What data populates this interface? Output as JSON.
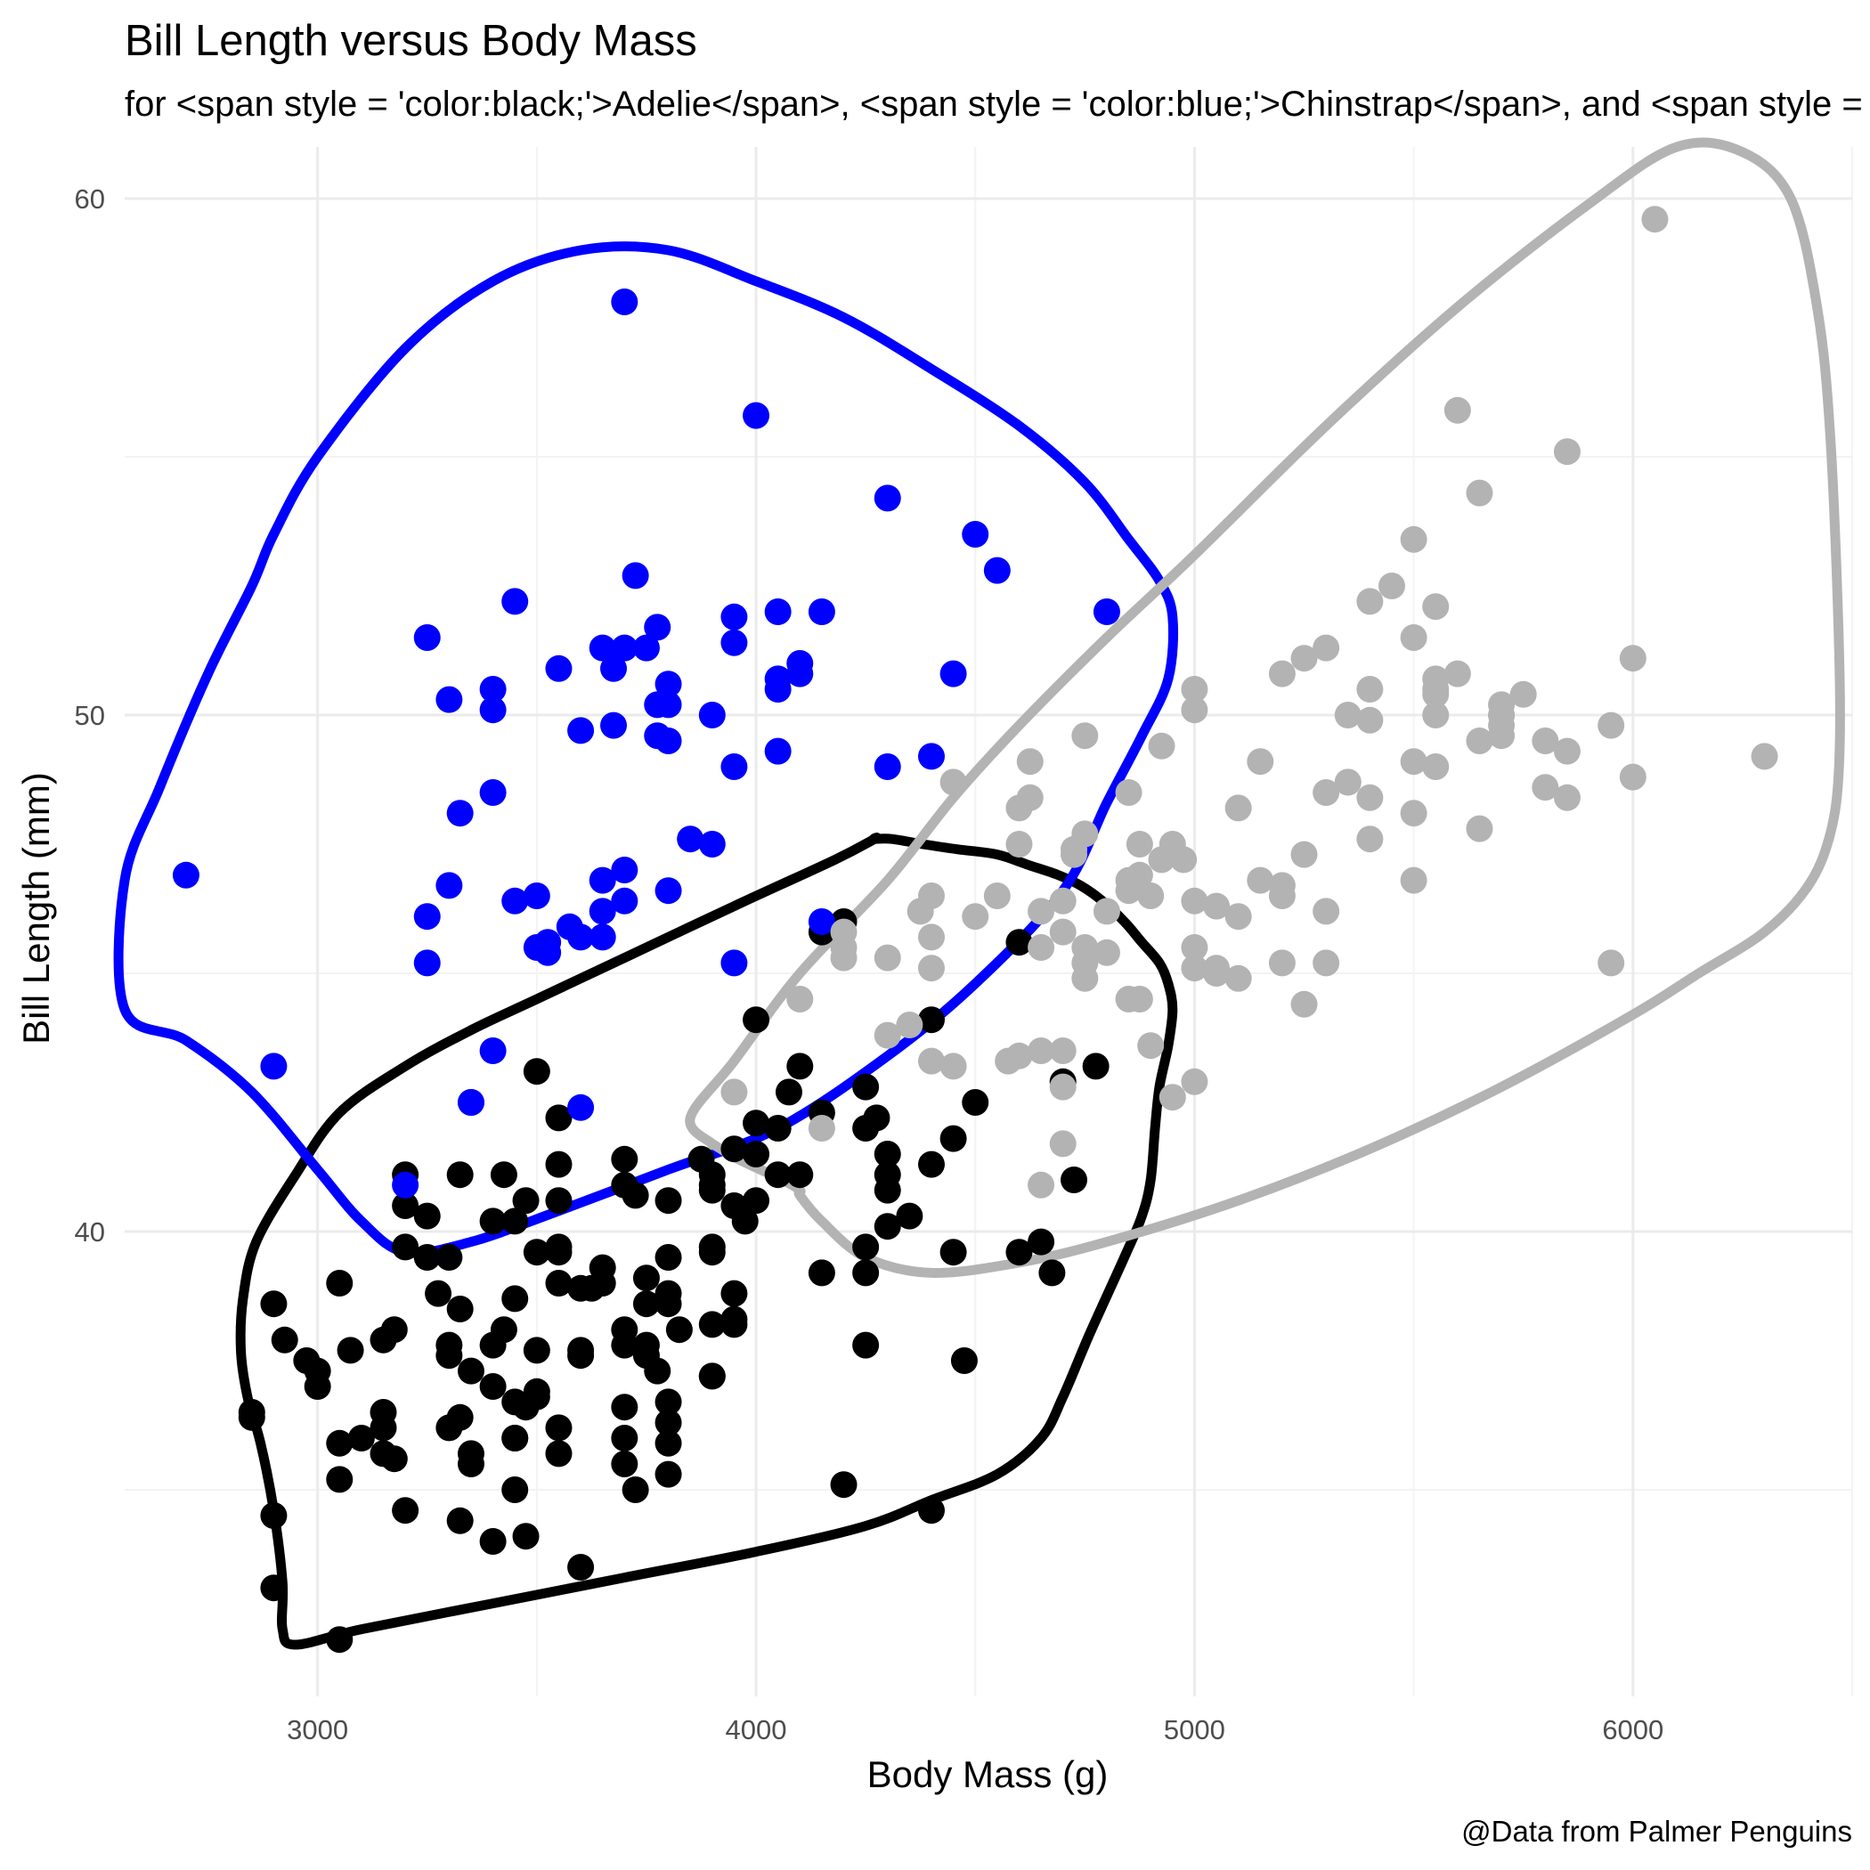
{
  "chart_data": {
    "type": "scatter",
    "title": "Bill Length versus Body Mass",
    "subtitle": "for <span style = 'color:black;'>Adelie</span>, <span style = 'color:blue;'>Chinstrap</span>, and <span style = 'color:gray;'>Gentoo</span>",
    "xlabel": "Body Mass (g)",
    "ylabel": "Bill Length (mm)",
    "caption": "@Data from Palmer Penguins",
    "xlim": [
      2560,
      6500
    ],
    "ylim": [
      31.0,
      61.0
    ],
    "xticks": [
      3000,
      4000,
      5000,
      6000
    ],
    "yticks": [
      40,
      50,
      60
    ],
    "grid": true,
    "legend": "none",
    "colors": {
      "Adelie": "#000000",
      "Chinstrap": "#0000ff",
      "Gentoo": "#b3b3b3"
    },
    "series": [
      {
        "color": "#000000",
        "x": [
          3750,
          3800,
          3250,
          3450,
          3650,
          3625,
          4675,
          3475,
          4250,
          3300,
          3700,
          3200,
          3800,
          4400,
          3700,
          3450,
          4500,
          3325,
          4200,
          3400,
          3600,
          3800,
          3950,
          3800,
          3800,
          3550,
          3200,
          3150,
          3950,
          3250,
          3900,
          3300,
          3900,
          3325,
          4150,
          3950,
          3550,
          3300,
          4650,
          3150,
          3900,
          3100,
          4400,
          3000,
          4600,
          3425,
          2975,
          3450,
          4150,
          3500,
          4300,
          3450,
          4050,
          2900,
          3700,
          3550,
          3800,
          2850,
          3750,
          3150,
          4400,
          3600,
          4050,
          2850,
          3950,
          3350,
          4100,
          3050,
          4450,
          3600,
          3900,
          3550,
          4150,
          3700,
          4250,
          3700,
          3900,
          3550,
          4000,
          3200,
          4700,
          3800,
          4200,
          3350,
          3550,
          3800,
          3500,
          3950,
          3600,
          3550,
          4300,
          3400,
          4450,
          3300,
          4300,
          3700,
          4350,
          2900,
          4100,
          3725,
          4725,
          3075,
          4250,
          2925,
          3550,
          3750,
          3900,
          3175,
          4775,
          3825,
          4600,
          3200,
          4275,
          3900,
          4075,
          2900,
          3775,
          3350,
          3325,
          3150,
          3500,
          3450,
          3875,
          3050,
          4000,
          3275,
          4300,
          3050,
          4000,
          3325,
          3500,
          3500,
          4475,
          3425,
          3900,
          3175,
          3975,
          3400,
          4250,
          3400,
          3475,
          3050,
          3725,
          3000,
          3650,
          4250,
          3475,
          3450,
          3750,
          3700,
          4000
        ],
        "y": [
          39.1,
          39.5,
          40.3,
          36.7,
          39.3,
          38.9,
          39.2,
          34.1,
          42.0,
          37.8,
          37.8,
          41.1,
          38.6,
          34.6,
          36.6,
          38.7,
          42.5,
          34.4,
          46.0,
          37.8,
          37.7,
          35.9,
          38.2,
          38.8,
          35.3,
          40.6,
          40.5,
          37.9,
          40.5,
          39.5,
          37.2,
          39.5,
          40.9,
          36.4,
          39.2,
          38.8,
          42.2,
          37.6,
          39.8,
          36.5,
          40.8,
          36.0,
          44.1,
          37.0,
          39.6,
          41.1,
          37.5,
          36.0,
          42.3,
          39.6,
          40.1,
          35.0,
          42.0,
          34.5,
          41.4,
          39.0,
          40.6,
          36.5,
          37.6,
          35.7,
          41.3,
          37.6,
          41.1,
          36.4,
          41.6,
          35.5,
          41.1,
          35.9,
          41.8,
          33.5,
          39.7,
          39.6,
          45.8,
          35.5,
          42.8,
          40.9,
          37.2,
          36.2,
          42.1,
          34.6,
          42.9,
          36.7,
          35.1,
          37.3,
          41.3,
          36.3,
          36.9,
          38.3,
          38.9,
          35.7,
          41.1,
          34.0,
          39.6,
          36.2,
          40.8,
          38.1,
          40.3,
          33.1,
          43.2,
          35.0,
          41.0,
          37.7,
          37.8,
          37.9,
          39.7,
          38.6,
          38.2,
          38.1,
          43.2,
          38.1,
          45.6,
          39.7,
          42.2,
          39.6,
          42.7,
          38.6,
          37.3,
          35.7,
          41.1,
          36.2,
          37.7,
          40.2,
          41.4,
          35.2,
          40.6,
          38.8,
          41.5,
          39.0,
          44.1,
          38.5,
          43.1,
          36.8,
          37.5,
          38.1,
          41.1,
          35.6,
          40.2,
          37.0,
          39.7,
          40.2,
          40.6,
          32.1,
          40.7,
          37.3,
          39.0,
          39.2,
          36.6,
          36.0,
          37.8,
          36.0,
          41.5
        ]
      },
      {
        "color": "#0000ff",
        "x": [
          3500,
          3900,
          3650,
          3525,
          3725,
          3950,
          3250,
          3750,
          4150,
          3700,
          3800,
          3775,
          3700,
          4050,
          3575,
          4050,
          3300,
          3700,
          3450,
          4400,
          3600,
          3400,
          2900,
          3800,
          3300,
          4150,
          3400,
          3800,
          3700,
          4550,
          3200,
          4300,
          3350,
          4100,
          3600,
          3900,
          3850,
          4800,
          2700,
          4500,
          3950,
          3650,
          3550,
          3500,
          3675,
          4450,
          3400,
          4300,
          3250,
          3675,
          3325,
          3950,
          3600,
          4050,
          3350,
          3450,
          3250,
          4050,
          3800,
          3525,
          3950,
          3650,
          3650,
          4000,
          3400,
          3775,
          4100,
          3775
        ],
        "y": [
          46.5,
          50.0,
          51.3,
          45.4,
          52.7,
          45.2,
          46.1,
          51.3,
          46.0,
          51.3,
          46.6,
          51.7,
          47.0,
          52.0,
          45.9,
          50.5,
          50.3,
          58.0,
          46.4,
          49.2,
          42.4,
          48.5,
          43.2,
          50.6,
          46.7,
          52.0,
          50.5,
          49.5,
          46.4,
          52.8,
          40.9,
          54.2,
          42.5,
          51.0,
          49.7,
          47.5,
          47.6,
          52.0,
          46.9,
          53.5,
          49.0,
          46.2,
          50.9,
          45.5,
          50.9,
          50.8,
          50.1,
          49.0,
          51.5,
          49.8,
          48.1,
          51.4,
          45.7,
          50.7,
          42.5,
          52.2,
          45.2,
          49.3,
          50.2,
          45.6,
          51.9,
          46.8,
          45.7,
          55.8,
          43.5,
          49.6,
          50.8,
          50.2
        ]
      },
      {
        "color": "#b3b3b3",
        "x": [
          4500,
          5700,
          4450,
          5700,
          5400,
          4550,
          4800,
          5200,
          4400,
          5150,
          4650,
          5550,
          4650,
          5850,
          4200,
          5850,
          4150,
          6300,
          4800,
          5350,
          5700,
          5000,
          4400,
          5050,
          5000,
          5100,
          4100,
          5650,
          4600,
          5550,
          5250,
          4700,
          5050,
          6050,
          5150,
          5400,
          4950,
          5250,
          4350,
          5350,
          3950,
          5700,
          4300,
          4750,
          5550,
          4900,
          4200,
          5400,
          5100,
          5300,
          4850,
          5300,
          4400,
          5000,
          4900,
          5050,
          4300,
          5000,
          4450,
          5550,
          4200,
          5300,
          4400,
          5650,
          4700,
          5700,
          4650,
          5800,
          4700,
          5550,
          4750,
          5000,
          5100,
          5200,
          4700,
          5800,
          4600,
          6000,
          4750,
          5950,
          4625,
          5450,
          4725,
          5350,
          4750,
          5600,
          4600,
          5300,
          4875,
          5550,
          4950,
          5400,
          4750,
          5650,
          4850,
          5200,
          4925,
          4875,
          4625,
          5250,
          4850,
          5600,
          4975,
          5500,
          4725,
          5500,
          4700,
          5500,
          4575,
          5500,
          5000,
          5950,
          4650,
          5500,
          4375,
          5850,
          4875,
          6000,
          4925,
          4850,
          5750,
          5200,
          5400
        ],
        "y": [
          46.1,
          50.0,
          48.7,
          50.0,
          47.6,
          46.5,
          45.4,
          46.7,
          43.3,
          46.8,
          40.9,
          49.0,
          45.5,
          48.4,
          45.8,
          49.3,
          42.0,
          49.2,
          46.2,
          48.7,
          50.2,
          45.1,
          46.5,
          46.3,
          42.9,
          46.1,
          44.5,
          47.8,
          48.2,
          50.0,
          47.3,
          42.8,
          45.1,
          59.6,
          49.1,
          48.4,
          42.6,
          44.4,
          44.0,
          48.7,
          42.7,
          49.6,
          45.3,
          49.6,
          50.5,
          43.6,
          45.5,
          50.5,
          44.9,
          45.2,
          46.6,
          48.5,
          45.1,
          50.1,
          46.5,
          45.0,
          43.8,
          45.5,
          43.2,
          50.4,
          45.3,
          46.2,
          45.7,
          54.3,
          45.8,
          49.8,
          46.2,
          49.5,
          43.5,
          50.7,
          47.7,
          46.4,
          48.2,
          46.5,
          46.4,
          48.6,
          47.5,
          51.1,
          45.2,
          45.2,
          49.1,
          52.5,
          47.4,
          50.0,
          44.9,
          50.8,
          43.4,
          51.3,
          47.5,
          52.1,
          47.5,
          52.2,
          45.5,
          49.5,
          44.5,
          50.8,
          49.4,
          46.9,
          48.4,
          51.1,
          48.5,
          55.9,
          47.2,
          49.1,
          47.3,
          46.8,
          41.7,
          53.4,
          43.3,
          48.1,
          50.5,
          49.8,
          43.5,
          51.5,
          46.2,
          55.1,
          44.5,
          48.8,
          47.2,
          46.8,
          50.4,
          45.2,
          49.9
        ]
      }
    ],
    "contours": [
      {
        "color": "#000000",
        "x": [
          4270,
          4180,
          3950,
          3700,
          3500,
          3350,
          3200,
          3050,
          2950,
          2860,
          2830,
          2825,
          2840,
          2870,
          2900,
          2920,
          2920,
          2950,
          3100,
          3400,
          3700,
          4000,
          4250,
          4400,
          4550,
          4650,
          4700,
          4760,
          4840,
          4880,
          4900,
          4910,
          4920,
          4940,
          4950,
          4940,
          4920,
          4880,
          4840,
          4790,
          4740,
          4690,
          4620,
          4550,
          4460,
          4380,
          4310,
          4270
        ],
        "y": [
          47.6,
          47.2,
          46.3,
          45.3,
          44.5,
          43.9,
          43.2,
          42.3,
          41.1,
          39.8,
          38.7,
          37.7,
          36.8,
          35.9,
          34.6,
          33.2,
          32.3,
          32.0,
          32.3,
          32.8,
          33.3,
          33.8,
          34.3,
          34.8,
          35.3,
          36.0,
          36.8,
          38.0,
          39.5,
          40.3,
          41.0,
          42.0,
          42.8,
          43.6,
          44.3,
          44.8,
          45.2,
          45.6,
          46.0,
          46.4,
          46.7,
          46.9,
          47.1,
          47.3,
          47.4,
          47.5,
          47.6,
          47.6
        ]
      },
      {
        "color": "#0000ff",
        "x": [
          2560,
          2700,
          2850,
          3000,
          3100,
          3200,
          3350,
          3550,
          3800,
          4050,
          4300,
          4500,
          4700,
          4800,
          4880,
          4940,
          4950,
          4920,
          4850,
          4750,
          4600,
          4400,
          4200,
          4000,
          3800,
          3600,
          3400,
          3200,
          3000,
          2900,
          2850,
          2750,
          2640,
          2560
        ],
        "y": [
          44.3,
          43.7,
          42.7,
          41.2,
          40.2,
          39.6,
          39.8,
          40.4,
          41.2,
          42.0,
          43.4,
          44.8,
          46.6,
          48.3,
          49.6,
          50.7,
          51.9,
          52.6,
          53.4,
          54.5,
          55.6,
          56.7,
          57.7,
          58.4,
          59.0,
          59.0,
          58.4,
          57.1,
          55.0,
          53.5,
          52.5,
          50.8,
          48.6,
          46.8
        ]
      },
      {
        "color": "#b3b3b3",
        "x": [
          3900,
          3850,
          3950,
          4100,
          4300,
          4450,
          4600,
          4800,
          5000,
          5300,
          5600,
          5900,
          6100,
          6250,
          6360,
          6420,
          6450,
          6470,
          6470,
          6450,
          6400,
          6300,
          6150,
          6000,
          5700,
          5400,
          5100,
          4800,
          4600,
          4400,
          4250,
          4150,
          4100,
          4100,
          4060,
          3960,
          3900
        ],
        "y": [
          41.7,
          42.2,
          43.3,
          45.0,
          46.8,
          48.4,
          49.8,
          51.5,
          53.1,
          55.6,
          57.9,
          59.9,
          61.0,
          60.9,
          60.0,
          57.9,
          55.4,
          51.3,
          49.0,
          47.7,
          46.7,
          45.8,
          45.0,
          44.2,
          42.8,
          41.6,
          40.6,
          39.8,
          39.4,
          39.2,
          39.5,
          40.2,
          40.7,
          40.8,
          41.0,
          41.4,
          41.7
        ]
      }
    ]
  }
}
